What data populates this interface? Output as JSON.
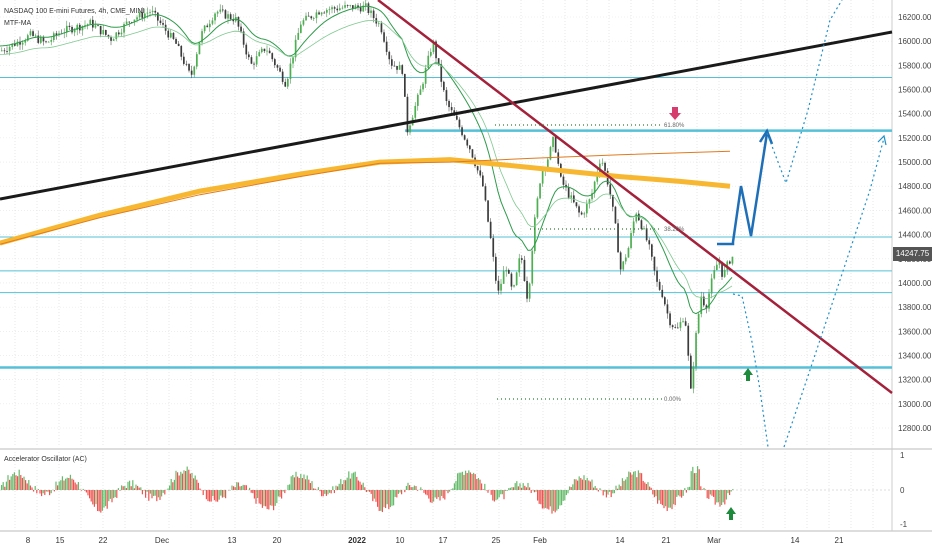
{
  "chart_data": {
    "type": "candlestick",
    "header": {
      "symbol_line": "NASDAQ 100 E-mini Futures, 4h, CME_MINI",
      "indicator": "MTF-MA"
    },
    "oscillator_label": "Accelerator Oscillator (AC)",
    "last_price": "14247.75",
    "y_axis": {
      "ylim": [
        12650,
        16300
      ],
      "ticks": [
        12800,
        13000,
        13200,
        13400,
        13600,
        13800,
        14000,
        14200,
        14400,
        14600,
        14800,
        15000,
        15200,
        15400,
        15600,
        15800,
        16000,
        16200
      ]
    },
    "oscillator_axis": {
      "ticks": [
        "1",
        "0",
        "-1"
      ]
    },
    "x_axis_labels": [
      "8",
      "15",
      "22",
      "Dec",
      "13",
      "20",
      "2022",
      "10",
      "17",
      "25",
      "Feb",
      "14",
      "21",
      "Mar",
      "14",
      "21"
    ],
    "x_axis_bold": "2022",
    "fib_labels": {
      "top": "61.80%",
      "mid": "38.20%",
      "bottom": "0.00%"
    },
    "fib_levels": [
      15250,
      14420,
      13030
    ],
    "horizontal_levels": [
      15700,
      15260,
      14380,
      14100,
      13920,
      13300
    ],
    "bold_horizontal_levels": [
      15260,
      13300
    ],
    "trendlines": [
      {
        "name": "black-support",
        "from": {
          "date_label": "start",
          "price": 14700
        },
        "to": {
          "date_label": "end",
          "price": 16070
        }
      },
      {
        "name": "red-descending",
        "from": {
          "date_label": "Dec 31",
          "price": 16230
        },
        "to": {
          "date_label": "end",
          "price": 13080
        }
      }
    ],
    "series": [
      {
        "name": "MA-fast",
        "role": "green"
      },
      {
        "name": "MA-slow",
        "role": "orange"
      }
    ],
    "colors": {
      "up": "#26a69a",
      "down": "#ef5350",
      "bull_osc": "#66bb6a",
      "bear_osc": "#ef5350",
      "blue_path": "#1e6fb8",
      "projection": "#1e90c8",
      "level": "#55c0d8",
      "trend_red": "#a3213a",
      "trend_black": "#1a1a1a",
      "ma_yellow": "#f7b731",
      "ma_orange": "#e07a1f"
    }
  }
}
